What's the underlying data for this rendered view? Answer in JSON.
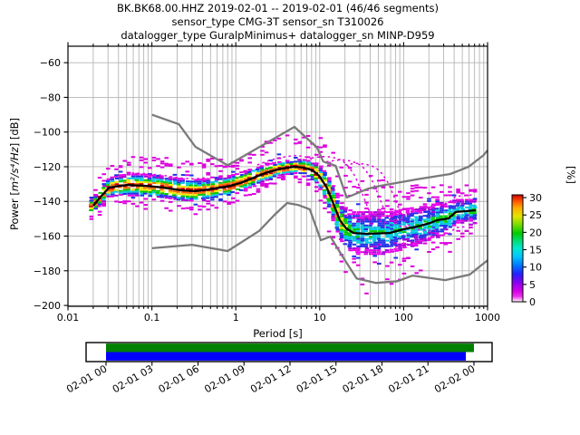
{
  "title": {
    "line1": "BK.BK68.00.HHZ   2019-02-01 -- 2019-02-01  (46/46 segments)",
    "line2": "sensor_type CMG-3T sensor_sn T310026",
    "line3": "datalogger_type GuralpMinimus+ datalogger_sn MINP-D959"
  },
  "axes": {
    "xlabel": "Period [s]",
    "ylabel_prefix": "Power [",
    "ylabel_math": "m²/s⁴/Hz",
    "ylabel_suffix": "] [dB]",
    "x_ticks": [
      {
        "label": "0.01",
        "value": 0.01
      },
      {
        "label": "0.1",
        "value": 0.1
      },
      {
        "label": "1",
        "value": 1
      },
      {
        "label": "10",
        "value": 10
      },
      {
        "label": "100",
        "value": 100
      },
      {
        "label": "1000",
        "value": 1000
      }
    ],
    "y_ticks": [
      {
        "label": "−60",
        "value": -60
      },
      {
        "label": "−80",
        "value": -80
      },
      {
        "label": "−100",
        "value": -100
      },
      {
        "label": "−120",
        "value": -120
      },
      {
        "label": "−140",
        "value": -140
      },
      {
        "label": "−160",
        "value": -160
      },
      {
        "label": "−180",
        "value": -180
      },
      {
        "label": "−200",
        "value": -200
      }
    ],
    "xlim": [
      0.01,
      1000
    ],
    "ylim": [
      -200.5,
      -50.5
    ],
    "grid": true,
    "grid_color": "#b5b5b5"
  },
  "colorbar": {
    "label": "[%]",
    "ticks": [
      "0",
      "5",
      "10",
      "15",
      "20",
      "25",
      "30"
    ],
    "tick_values": [
      0,
      5,
      10,
      15,
      20,
      25,
      30
    ],
    "vmax": 30.8,
    "gradient": [
      [
        0.0,
        "#ffffff"
      ],
      [
        0.05,
        "#ee30ee"
      ],
      [
        0.1,
        "#d400e8"
      ],
      [
        0.18,
        "#8800f0"
      ],
      [
        0.26,
        "#2222ff"
      ],
      [
        0.34,
        "#0077ff"
      ],
      [
        0.42,
        "#00c4ff"
      ],
      [
        0.5,
        "#00e8d0"
      ],
      [
        0.57,
        "#00dd77"
      ],
      [
        0.64,
        "#00cc00"
      ],
      [
        0.72,
        "#77dd00"
      ],
      [
        0.8,
        "#e4e400"
      ],
      [
        0.88,
        "#ffaa00"
      ],
      [
        0.94,
        "#ff5500"
      ],
      [
        1.0,
        "#cc0000"
      ]
    ]
  },
  "chart_data": {
    "type": "heatmap",
    "title": "PPSD probability histogram, period [s] vs power [dB], color = probability [%]",
    "xlabel": "Period [s]",
    "ylabel": "Power [m²/s⁴/Hz] [dB]",
    "xlim": [
      0.01,
      1000
    ],
    "ylim": [
      -200.5,
      -50.5
    ],
    "legend_position": "colorbar-right",
    "mean_curve": {
      "periods": [
        0.02,
        0.024,
        0.031,
        0.05,
        0.083,
        0.136,
        0.224,
        0.325,
        0.47,
        0.78,
        1.13,
        1.64,
        2.38,
        3.45,
        5.0,
        6.4,
        8.2,
        9.8,
        12.0,
        14.6,
        17.4,
        20.7,
        25.2,
        36.6,
        68,
        99,
        144,
        209,
        248,
        343,
        419,
        723
      ],
      "db": [
        -142.5,
        -137.8,
        -132.0,
        -130.5,
        -131.0,
        -132.0,
        -133.6,
        -134.1,
        -133.1,
        -131.5,
        -129.4,
        -126.3,
        -123.2,
        -121.1,
        -120.0,
        -120.5,
        -122.1,
        -125.2,
        -131.5,
        -141.5,
        -150.9,
        -155.6,
        -158.2,
        -158.7,
        -158.2,
        -156.1,
        -154.5,
        -152.4,
        -150.9,
        -149.8,
        -146.1,
        -145.1
      ]
    },
    "noise_models": {
      "nhnm": [
        [
          0.1,
          -90
        ],
        [
          0.21,
          -95.5
        ],
        [
          0.33,
          -108.5
        ],
        [
          0.8,
          -119.2
        ],
        [
          5.0,
          -97.0
        ],
        [
          9.3,
          -109.0
        ],
        [
          11,
          -117.0
        ],
        [
          15.5,
          -119.5
        ],
        [
          21,
          -137.8
        ],
        [
          38,
          -132.6
        ],
        [
          53,
          -131.0
        ],
        [
          144,
          -127.3
        ],
        [
          360,
          -124.2
        ],
        [
          595,
          -120.0
        ],
        [
          890,
          -113.5
        ],
        [
          1000,
          -110.5
        ]
      ],
      "nlnm": [
        [
          0.1,
          -167
        ],
        [
          0.3,
          -165
        ],
        [
          0.8,
          -168.6
        ],
        [
          1.9,
          -157
        ],
        [
          2.9,
          -147.7
        ],
        [
          4.1,
          -140.9
        ],
        [
          5.5,
          -142
        ],
        [
          7.6,
          -144.6
        ],
        [
          10.3,
          -162.4
        ],
        [
          13.4,
          -160.3
        ],
        [
          19,
          -172.3
        ],
        [
          27.5,
          -184.4
        ],
        [
          47,
          -187
        ],
        [
          84,
          -186
        ],
        [
          128,
          -182.8
        ],
        [
          313,
          -185.4
        ],
        [
          612,
          -182.2
        ],
        [
          835,
          -177
        ],
        [
          1000,
          -174
        ]
      ]
    },
    "distribution": {
      "spread_db": [
        4,
        5,
        5.5,
        6,
        6.5,
        6.5,
        6.5,
        6.5,
        6,
        6,
        5.5,
        5,
        4.5,
        4,
        4,
        4.5,
        5,
        6.5,
        8,
        10,
        11,
        11.5,
        12,
        12.5,
        12,
        11.5,
        11,
        10,
        10,
        9,
        7,
        6
      ],
      "peak_percent": [
        30,
        30,
        30,
        29,
        28,
        28,
        28,
        28,
        28,
        29,
        30,
        31,
        32,
        32,
        32,
        31,
        30,
        28,
        26,
        25,
        22,
        18,
        14,
        12,
        12,
        12,
        13,
        14,
        14,
        15,
        15,
        15
      ],
      "outlier_up_db": [
        5,
        7,
        9,
        10,
        11,
        11,
        12,
        12,
        12,
        10,
        10,
        12,
        14,
        16,
        16,
        15,
        15,
        17,
        20,
        24,
        26,
        26,
        25,
        22,
        19,
        17,
        15,
        14,
        13,
        12,
        10,
        7
      ],
      "outlier_dn_db": [
        4,
        5,
        6,
        6,
        7,
        7,
        7,
        7,
        6,
        6,
        5,
        5,
        5,
        4,
        4,
        5,
        6,
        8,
        12,
        16,
        18,
        20,
        22,
        22,
        20,
        18,
        16,
        14,
        13,
        12,
        10,
        7
      ],
      "outlier_traces": [
        {
          "period_scale": 1.0,
          "db_offset": 6.5,
          "pmin": 1.8,
          "pmax": 9
        },
        {
          "period_scale": 1.0,
          "db_offset": 7.0,
          "pmin": 0.05,
          "pmax": 0.5
        },
        {
          "period_scale": 2.2,
          "db_offset": 6.0,
          "pmin": 8,
          "pmax": 70
        },
        {
          "period_scale": 3.5,
          "db_offset": 4.0,
          "pmin": 12,
          "pmax": 120
        },
        {
          "period_scale": 5.5,
          "db_offset": 2.0,
          "pmin": 20,
          "pmax": 250
        },
        {
          "period_scale": 1.0,
          "db_offset": 9.0,
          "pmin": 150,
          "pmax": 700
        },
        {
          "period_scale": 1.0,
          "db_offset": -9.0,
          "pmin": 80,
          "pmax": 600
        }
      ]
    },
    "style": {
      "mean_line_color": "#000000",
      "noise_model_color": "#7a7a7a",
      "outlier_color": "#e000e0"
    }
  },
  "timeline": {
    "tick_labels": [
      "02-01 00",
      "02-01 03",
      "02-01 06",
      "02-01 09",
      "02-01 12",
      "02-01 15",
      "02-01 18",
      "02-01 21",
      "02-02 00"
    ],
    "coverage_bars": [
      {
        "name": "data-availability",
        "color": "#008000",
        "start_frac": 0.0,
        "end_frac": 1.0
      },
      {
        "name": "psd-segments",
        "color": "#0000ff",
        "start_frac": 0.0,
        "end_frac": 0.978
      }
    ]
  }
}
